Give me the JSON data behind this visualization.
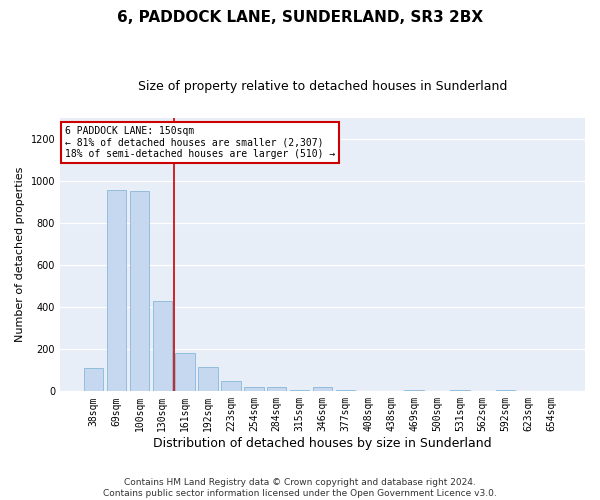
{
  "title": "6, PADDOCK LANE, SUNDERLAND, SR3 2BX",
  "subtitle": "Size of property relative to detached houses in Sunderland",
  "xlabel": "Distribution of detached houses by size in Sunderland",
  "ylabel": "Number of detached properties",
  "bar_color": "#c5d8f0",
  "bar_edge_color": "#7aafd4",
  "background_color": "#e8eef8",
  "grid_color": "#ffffff",
  "vline_color": "#cc0000",
  "vline_x_idx": 3,
  "annotation_text": "6 PADDOCK LANE: 150sqm\n← 81% of detached houses are smaller (2,307)\n18% of semi-detached houses are larger (510) →",
  "annotation_box_color": "#ffffff",
  "annotation_box_edge_color": "#cc0000",
  "categories": [
    "38sqm",
    "69sqm",
    "100sqm",
    "130sqm",
    "161sqm",
    "192sqm",
    "223sqm",
    "254sqm",
    "284sqm",
    "315sqm",
    "346sqm",
    "377sqm",
    "408sqm",
    "438sqm",
    "469sqm",
    "500sqm",
    "531sqm",
    "562sqm",
    "592sqm",
    "623sqm",
    "654sqm"
  ],
  "values": [
    113,
    957,
    950,
    427,
    180,
    117,
    50,
    22,
    20,
    5,
    22,
    5,
    0,
    0,
    5,
    0,
    5,
    0,
    5,
    0,
    0
  ],
  "ylim": [
    0,
    1300
  ],
  "yticks": [
    0,
    200,
    400,
    600,
    800,
    1000,
    1200
  ],
  "footer": "Contains HM Land Registry data © Crown copyright and database right 2024.\nContains public sector information licensed under the Open Government Licence v3.0.",
  "title_fontsize": 11,
  "subtitle_fontsize": 9,
  "xlabel_fontsize": 9,
  "ylabel_fontsize": 8,
  "tick_fontsize": 7,
  "annot_fontsize": 7,
  "footer_fontsize": 6.5
}
